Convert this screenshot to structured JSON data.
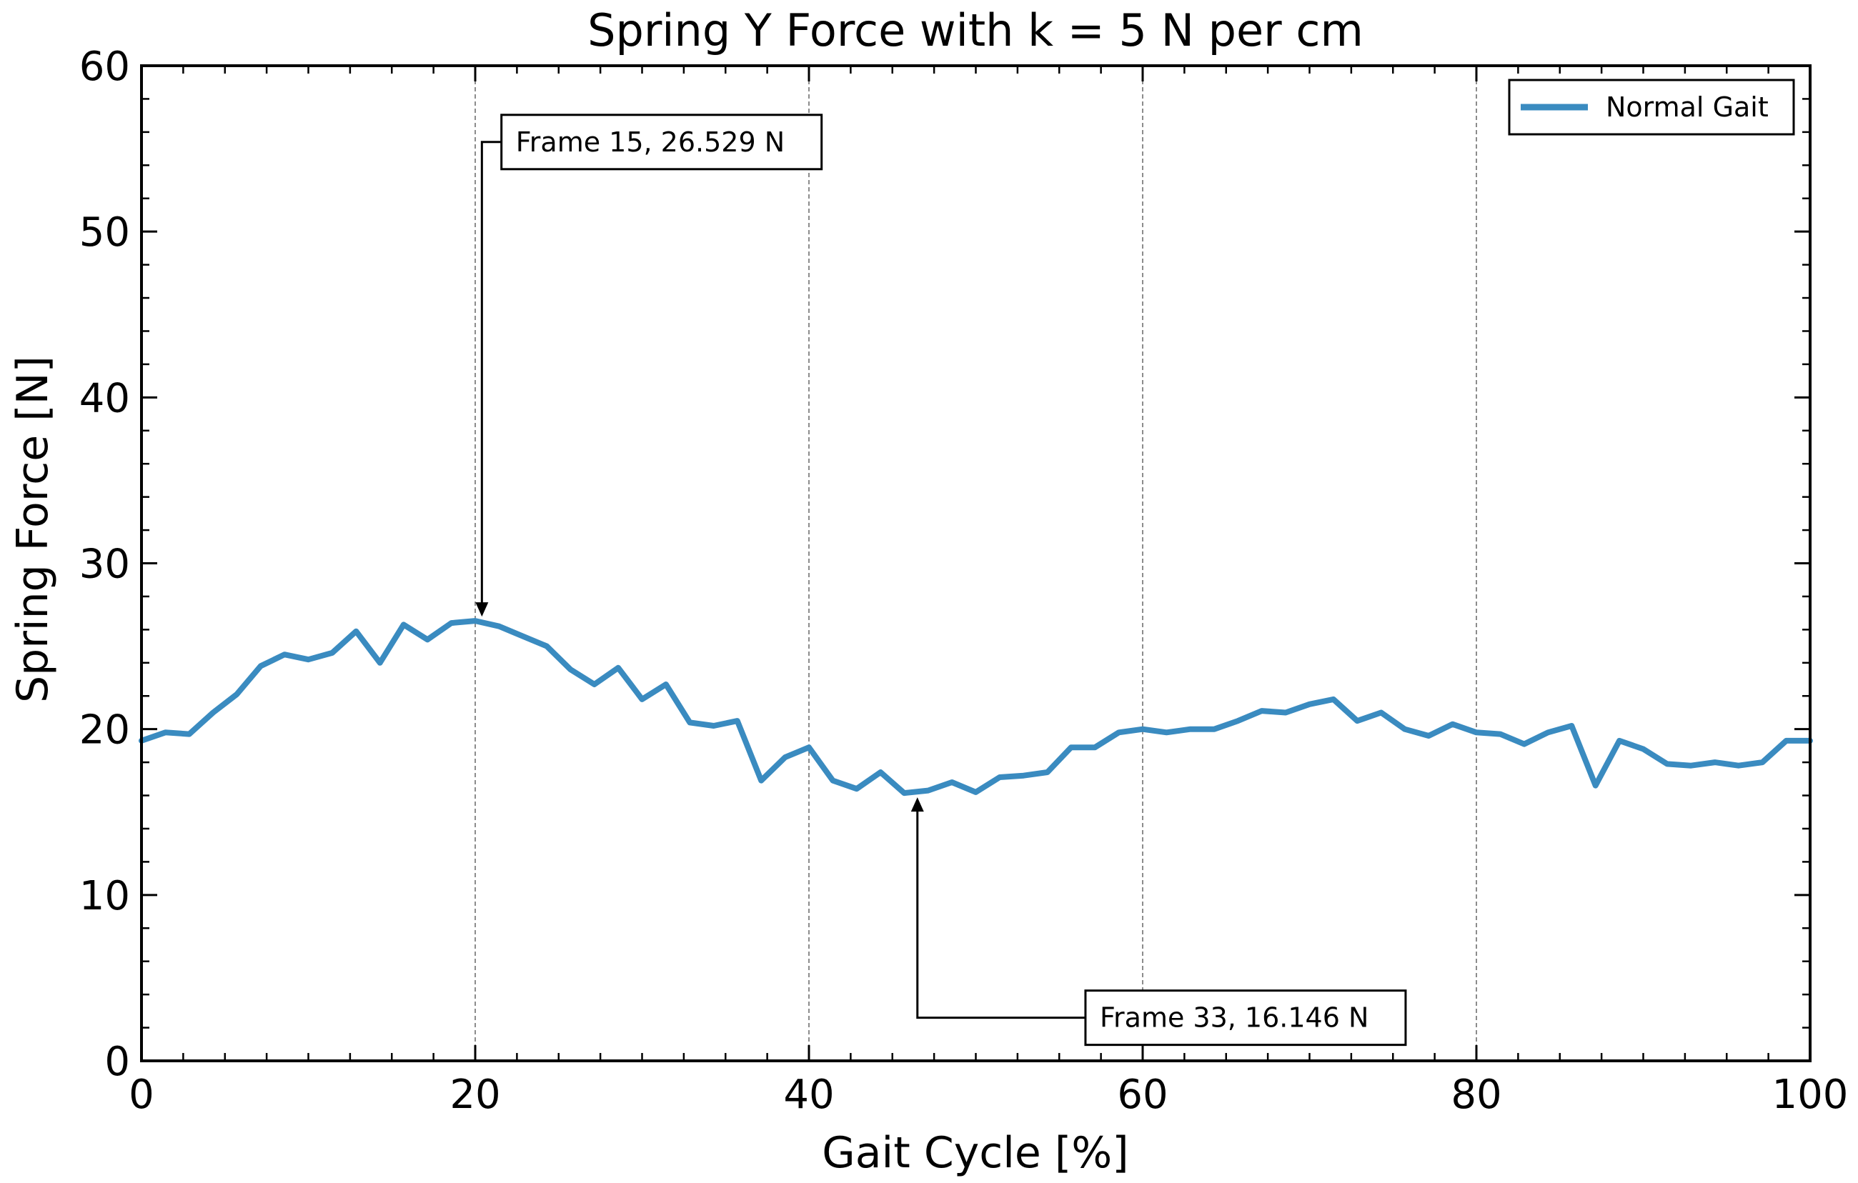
{
  "chart_data": {
    "type": "line",
    "title": "Spring Y Force with k = 5 N per cm",
    "xlabel": "Gait Cycle [%]",
    "ylabel": "Spring Force [N]",
    "xlim": [
      0,
      100
    ],
    "ylim": [
      0,
      60
    ],
    "x_ticks": [
      "0",
      "20",
      "40",
      "60",
      "80",
      "100"
    ],
    "y_ticks": [
      "0",
      "10",
      "20",
      "30",
      "40",
      "50",
      "60"
    ],
    "grid": "vertical dashed at major x ticks",
    "legend_placement": "top-right",
    "series": [
      {
        "name": "Normal Gait",
        "color": "#3a8bc0",
        "x": [
          0,
          1.43,
          2.86,
          4.29,
          5.71,
          7.14,
          8.57,
          10.0,
          11.43,
          12.86,
          14.29,
          15.71,
          17.14,
          18.57,
          20.0,
          21.43,
          22.86,
          24.29,
          25.71,
          27.14,
          28.57,
          30.0,
          31.43,
          32.86,
          34.29,
          35.71,
          37.14,
          38.57,
          40.0,
          41.43,
          42.86,
          44.29,
          45.71,
          47.14,
          48.57,
          50.0,
          51.43,
          52.86,
          54.29,
          55.71,
          57.14,
          58.57,
          60.0,
          61.43,
          62.86,
          64.29,
          65.71,
          67.14,
          68.57,
          70.0,
          71.43,
          72.86,
          74.29,
          75.71,
          77.14,
          78.57,
          80.0,
          81.43,
          82.86,
          84.29,
          85.71,
          87.14,
          88.57,
          90.0,
          91.43,
          92.86,
          94.29,
          95.71,
          97.14,
          98.57,
          100.0
        ],
        "y": [
          19.3,
          19.8,
          19.7,
          21.0,
          22.1,
          23.8,
          24.5,
          24.2,
          24.6,
          25.9,
          24.0,
          26.3,
          25.4,
          26.4,
          26.529,
          26.2,
          25.6,
          25.0,
          23.6,
          22.7,
          23.7,
          21.8,
          22.7,
          20.4,
          20.2,
          20.5,
          16.9,
          18.3,
          18.9,
          16.9,
          16.4,
          17.4,
          16.146,
          16.3,
          16.8,
          16.2,
          17.1,
          17.2,
          17.4,
          18.9,
          18.9,
          19.8,
          20.0,
          19.8,
          20.0,
          20.0,
          20.5,
          21.1,
          21.0,
          21.5,
          21.8,
          20.5,
          21.0,
          20.0,
          19.6,
          20.3,
          19.8,
          19.7,
          19.1,
          19.8,
          20.2,
          16.6,
          19.3,
          18.8,
          17.9,
          17.8,
          18.0,
          17.8,
          18.0,
          19.3,
          19.3
        ]
      }
    ],
    "annotations": [
      {
        "text": "Frame 15, 26.529 N",
        "x": 20.4,
        "y": 26.529,
        "text_x": 22.0,
        "text_y": 55.4
      },
      {
        "text": "Frame 33, 16.146 N",
        "x": 46.5,
        "y": 16.146,
        "text_x": 57.0,
        "text_y": 2.6
      }
    ]
  }
}
